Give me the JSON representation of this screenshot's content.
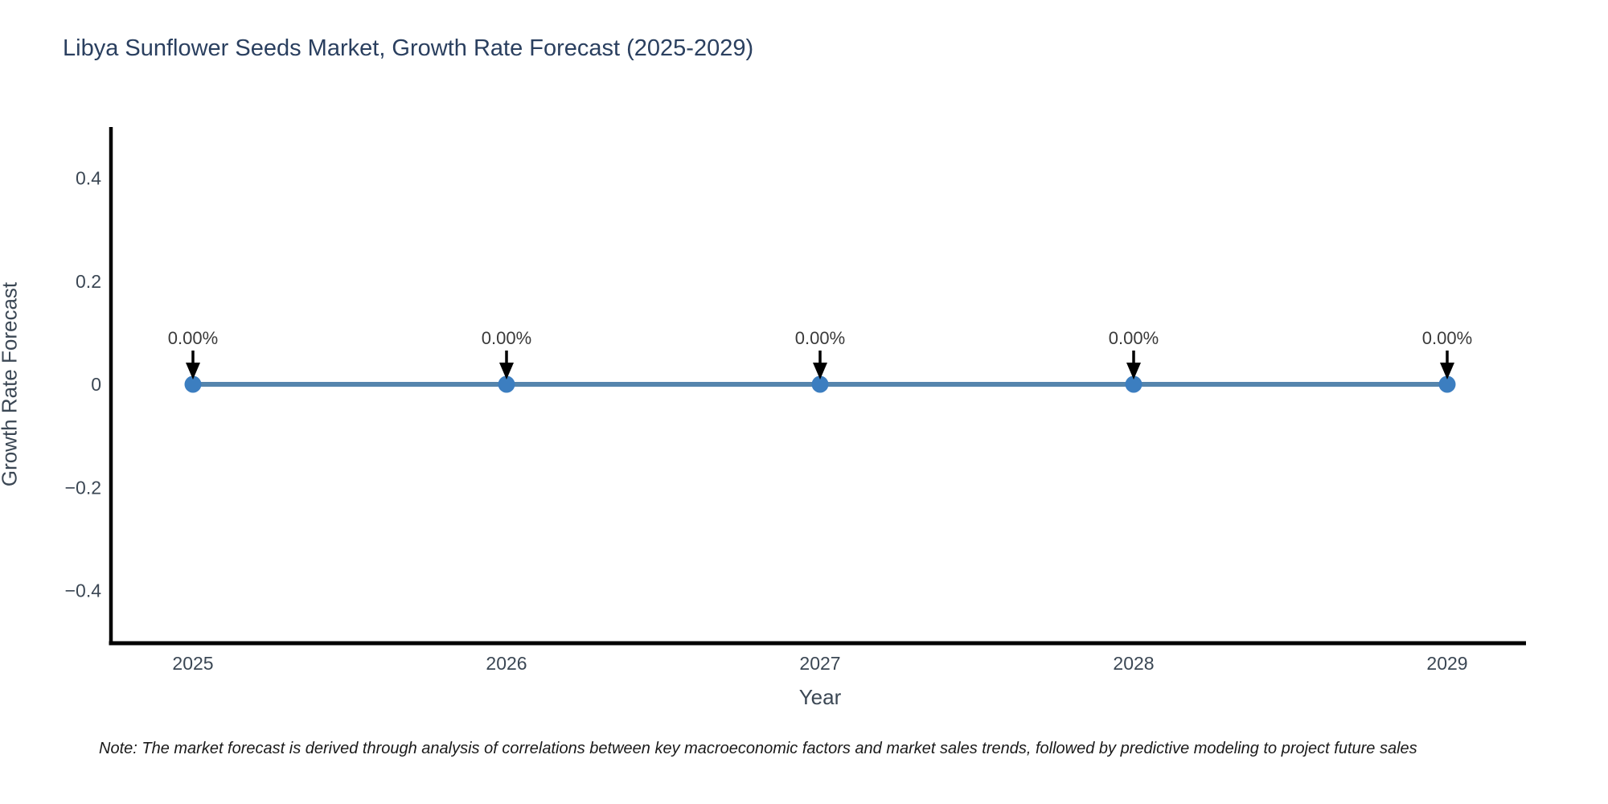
{
  "title": "Libya Sunflower Seeds Market, Growth Rate Forecast (2025-2029)",
  "note": "Note: The market forecast is derived through analysis of correlations between key macroeconomic factors and market sales trends, followed by predictive modeling to project future sales",
  "chart_data": {
    "type": "line",
    "title": "Libya Sunflower Seeds Market, Growth Rate Forecast (2025-2029)",
    "xlabel": "Year",
    "ylabel": "Growth Rate Forecast",
    "x": [
      2025,
      2026,
      2027,
      2028,
      2029
    ],
    "series": [
      {
        "name": "Growth Rate Forecast",
        "values": [
          0,
          0,
          0,
          0,
          0
        ]
      }
    ],
    "point_labels": [
      "0.00%",
      "0.00%",
      "0.00%",
      "0.00%",
      "0.00%"
    ],
    "xtick_labels": [
      "2025",
      "2026",
      "2027",
      "2028",
      "2029"
    ],
    "yticks": [
      0.4,
      0.2,
      0,
      -0.2,
      -0.4
    ],
    "ytick_labels": [
      "0.4",
      "0.2",
      "0",
      "−0.2",
      "−0.4"
    ],
    "ylim": [
      -0.5,
      0.5
    ],
    "grid": false,
    "legend": "none",
    "colors": {
      "line": "#5585ad",
      "marker": "#3c7ec0",
      "arrow": "#000000",
      "axis": "#000000",
      "tick_text": "#3b4754",
      "annotation_text": "#3a3a3a",
      "title_text": "#2a3f5f"
    }
  }
}
